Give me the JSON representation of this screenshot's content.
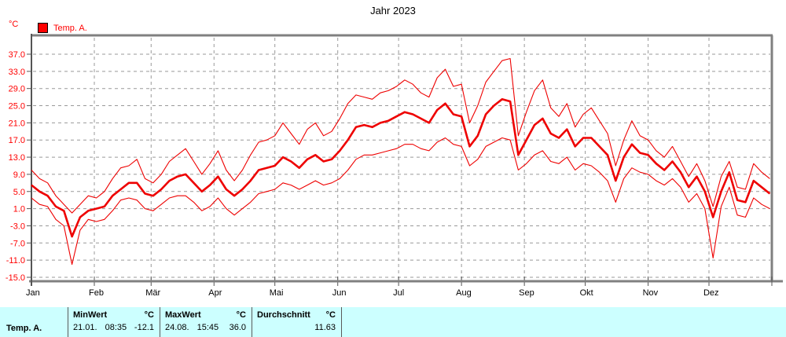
{
  "header": {
    "title": "Jahr 2023",
    "y_unit": "°C"
  },
  "legend": {
    "label": "Temp. A.",
    "swatch_color": "#ff0000"
  },
  "colors": {
    "series": "#ee0000",
    "grid": "#999999",
    "border": "#808080",
    "axis": "#555555",
    "tick_label_y": "#ff0000",
    "tick_label_x": "#000000",
    "table_bg": "#ccffff"
  },
  "chart_data": {
    "type": "line",
    "title": "Jahr 2023",
    "ylabel": "°C",
    "xlabel": "",
    "ylim": [
      -15,
      37
    ],
    "grid": true,
    "legend_position": "top-left",
    "y_ticks": [
      {
        "value": 37,
        "label": "37.0"
      },
      {
        "value": 33,
        "label": "33.0"
      },
      {
        "value": 29,
        "label": "29.0"
      },
      {
        "value": 25,
        "label": "25.0"
      },
      {
        "value": 21,
        "label": "21.0"
      },
      {
        "value": 17,
        "label": "17.0"
      },
      {
        "value": 13,
        "label": "13.0"
      },
      {
        "value": 9,
        "label": "9.0"
      },
      {
        "value": 5,
        "label": "5.0"
      },
      {
        "value": 1,
        "label": "1.0"
      },
      {
        "value": -3,
        "label": "-3.0"
      },
      {
        "value": -7,
        "label": "-7.0"
      },
      {
        "value": -11,
        "label": "-11.0"
      },
      {
        "value": -15,
        "label": "-15.0"
      }
    ],
    "x_months": [
      {
        "label": "Jan",
        "start_day": 1
      },
      {
        "label": "Feb",
        "start_day": 32
      },
      {
        "label": "Mär",
        "start_day": 60
      },
      {
        "label": "Apr",
        "start_day": 91
      },
      {
        "label": "Mai",
        "start_day": 121
      },
      {
        "label": "Jun",
        "start_day": 152
      },
      {
        "label": "Jul",
        "start_day": 182
      },
      {
        "label": "Aug",
        "start_day": 213
      },
      {
        "label": "Sep",
        "start_day": 244
      },
      {
        "label": "Okt",
        "start_day": 274
      },
      {
        "label": "Nov",
        "start_day": 305
      },
      {
        "label": "Dez",
        "start_day": 335
      }
    ],
    "x_unit": "day_of_year",
    "x_start": 1,
    "x_step": 4,
    "series": [
      {
        "name": "daily-max",
        "style": "thin",
        "values": [
          10,
          8,
          7,
          4,
          2,
          0,
          2,
          4,
          3.5,
          5,
          8,
          10.5,
          11,
          12.5,
          8,
          7,
          9,
          12,
          13.5,
          15,
          12,
          9,
          11.5,
          14.5,
          10,
          7.5,
          10,
          13.5,
          16.5,
          17,
          18,
          21,
          18.5,
          16,
          19.5,
          21,
          18,
          19,
          22,
          25.5,
          27.5,
          27,
          26.5,
          28,
          28.5,
          29.5,
          31,
          30,
          28,
          27,
          31.5,
          33.5,
          29.5,
          30,
          21,
          25,
          30.5,
          33,
          35.5,
          36,
          18,
          23.5,
          28.5,
          31,
          24.5,
          22.5,
          25.5,
          20,
          23,
          24.5,
          21.5,
          18.5,
          11,
          17,
          21.5,
          18,
          17,
          14.5,
          13,
          15.5,
          12,
          8.5,
          11.5,
          7.5,
          1.5,
          8.5,
          12,
          6,
          5.5,
          11.5,
          9.5,
          8
        ]
      },
      {
        "name": "daily-mean",
        "style": "thick",
        "values": [
          6.5,
          5,
          4,
          1.5,
          0.5,
          -5.5,
          -1,
          0.5,
          1,
          1.5,
          4,
          5.5,
          7,
          7,
          4.5,
          4,
          5.5,
          7.5,
          8.5,
          9,
          7,
          5,
          6.5,
          8.5,
          5.5,
          4,
          5.5,
          7.5,
          10,
          10.5,
          11,
          13,
          12,
          10.5,
          12.5,
          13.5,
          12,
          12.5,
          14.5,
          17,
          20,
          20.5,
          20,
          21,
          21.5,
          22.5,
          23.5,
          23,
          22,
          21,
          24,
          25.5,
          23,
          22.5,
          15.5,
          18,
          23,
          25,
          26.5,
          26,
          13.5,
          17,
          20.5,
          22,
          18.5,
          17.5,
          19.5,
          15.5,
          17.5,
          17.5,
          15.5,
          13.5,
          7.5,
          13,
          16,
          14,
          13.5,
          11.5,
          10,
          12,
          9.5,
          6,
          8.5,
          5,
          -1,
          5,
          9.5,
          3,
          2.5,
          7.5,
          6,
          4.5
        ]
      },
      {
        "name": "daily-min",
        "style": "thin",
        "values": [
          3.5,
          2,
          1.5,
          -1.5,
          -3,
          -12,
          -4,
          -1.5,
          -2,
          -1.5,
          0.5,
          3,
          3.5,
          3,
          1,
          0.5,
          2,
          3.5,
          4,
          4,
          2.5,
          0.5,
          1.5,
          3.5,
          1,
          -0.5,
          1,
          2.5,
          4.5,
          5,
          5.5,
          7,
          6.5,
          5.5,
          6.5,
          7.5,
          6.5,
          7,
          8,
          10,
          12.5,
          13.5,
          13.5,
          14,
          14.5,
          15,
          16,
          16,
          15,
          14.5,
          16.5,
          17.5,
          16,
          15.5,
          11,
          12.5,
          15.5,
          16.5,
          17.5,
          17,
          10,
          11.5,
          13.5,
          14.5,
          12,
          11.5,
          13,
          10,
          11.5,
          11,
          9.5,
          7.5,
          2.5,
          8,
          10.5,
          9.5,
          9,
          7.5,
          6.5,
          8,
          6,
          2.5,
          4.5,
          1,
          -10.5,
          1.5,
          6,
          -0.5,
          -1,
          3.5,
          2,
          1
        ]
      }
    ]
  },
  "stats_table": {
    "row_label": "Temp. A.",
    "columns": [
      {
        "header": "MinWert",
        "unit": "°C",
        "date": "21.01.",
        "time": "08:35",
        "value": "-12.1"
      },
      {
        "header": "MaxWert",
        "unit": "°C",
        "date": "24.08.",
        "time": "15:45",
        "value": "36.0"
      },
      {
        "header": "Durchschnitt",
        "unit": "°C",
        "value": "11.63"
      }
    ]
  }
}
